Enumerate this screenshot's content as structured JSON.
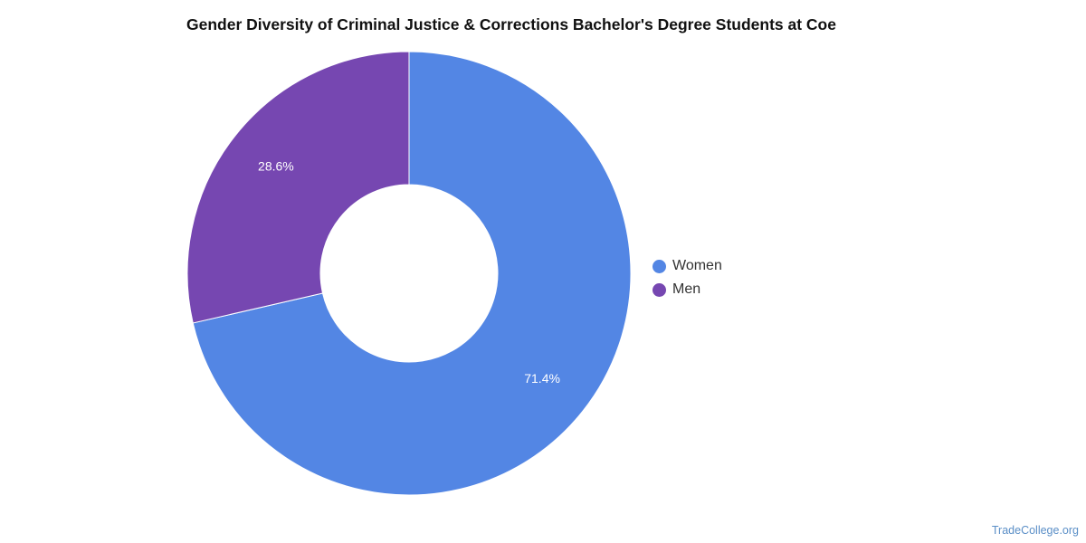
{
  "chart_data": {
    "type": "pie",
    "title": "Gender Diversity of Criminal Justice & Corrections Bachelor's Degree Students at Coe",
    "categories": [
      "Women",
      "Men"
    ],
    "values": [
      71.4,
      28.6
    ],
    "value_labels": [
      "71.4%",
      "28.6%"
    ],
    "colors": [
      "#5386e4",
      "#7647b1"
    ],
    "legend_position": "right",
    "donut": true
  },
  "credit": "TradeCollege.org"
}
